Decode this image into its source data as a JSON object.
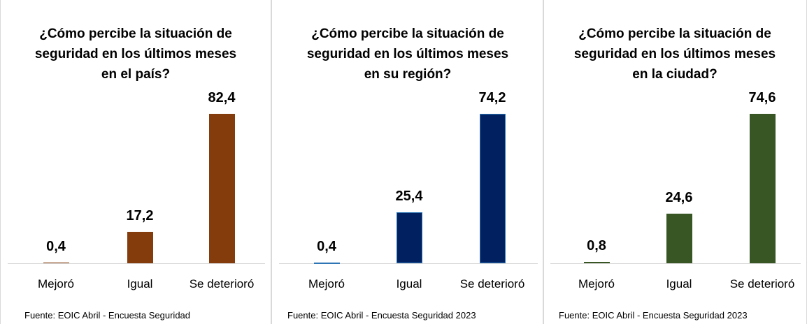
{
  "chart_data": [
    {
      "type": "bar",
      "title": "¿Cómo percibe la situación de seguridad en los últimos meses en el país?",
      "categories": [
        "Mejoró",
        "Igual",
        "Se deterioró"
      ],
      "values": [
        0.4,
        17.2,
        82.4
      ],
      "value_labels": [
        "0,4",
        "17,2",
        "82,4"
      ],
      "color": "#843c0c",
      "note": "Fuente: EOIC Abril - Encuesta Seguridad"
    },
    {
      "type": "bar",
      "title": "¿Cómo percibe la situación de seguridad en los últimos meses en su región?",
      "categories": [
        "Mejoró",
        "Igual",
        "Se deterioró"
      ],
      "values": [
        0.4,
        25.4,
        74.2
      ],
      "value_labels": [
        "0,4",
        "25,4",
        "74,2"
      ],
      "color": "#002060",
      "note": "Fuente: EOIC Abril - Encuesta Seguridad 2023"
    },
    {
      "type": "bar",
      "title": "¿Cómo percibe la situación de seguridad en los últimos meses en la ciudad?",
      "categories": [
        "Mejoró",
        "Igual",
        "Se deterioró"
      ],
      "values": [
        0.8,
        24.6,
        74.6
      ],
      "value_labels": [
        "0,8",
        "24,6",
        "74,6"
      ],
      "color": "#375623",
      "note": "Fuente: EOIC Abril - Encuesta Seguridad 2023"
    }
  ]
}
